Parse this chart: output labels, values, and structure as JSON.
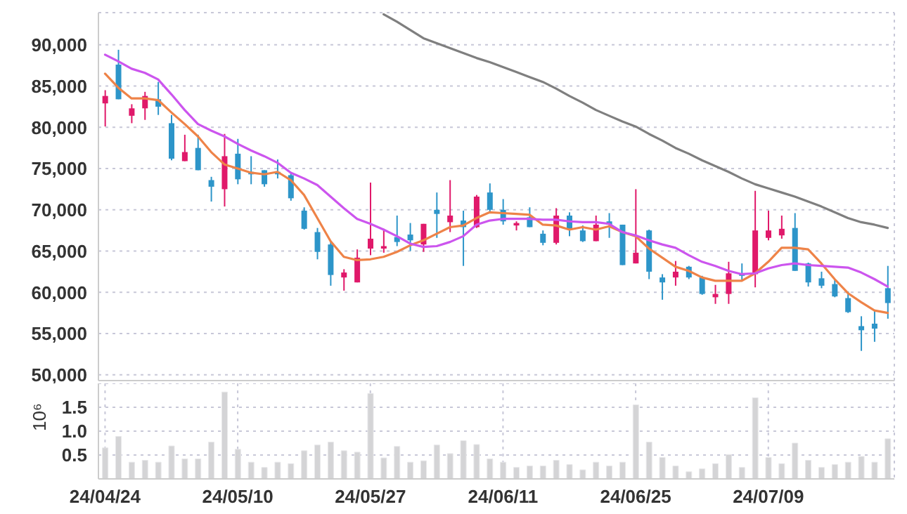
{
  "chart_data": [
    {
      "type": "candlestick",
      "ohlc": [
        [
          82900,
          84500,
          80100,
          83800
        ],
        [
          87600,
          89400,
          83400,
          83400
        ],
        [
          81400,
          82800,
          80500,
          82300
        ],
        [
          82300,
          84300,
          80900,
          83800
        ],
        [
          83400,
          85500,
          81500,
          82500
        ],
        [
          80500,
          81500,
          76000,
          76200
        ],
        [
          75900,
          79100,
          75900,
          77000
        ],
        [
          77500,
          79100,
          74800,
          74800
        ],
        [
          73600,
          74000,
          71000,
          72800
        ],
        [
          72500,
          79200,
          70400,
          76500
        ],
        [
          76800,
          78600,
          73100,
          73700
        ],
        [
          74600,
          76500,
          73100,
          74300
        ],
        [
          74800,
          74800,
          72800,
          73100
        ],
        [
          74600,
          76100,
          73800,
          74300
        ],
        [
          74200,
          74500,
          71100,
          71400
        ],
        [
          69900,
          70300,
          67600,
          67700
        ],
        [
          67300,
          67800,
          64000,
          64900
        ],
        [
          65800,
          66200,
          60800,
          62100
        ],
        [
          61800,
          62800,
          60200,
          62400
        ],
        [
          61200,
          65200,
          61200,
          64200
        ],
        [
          65300,
          73300,
          64500,
          66500
        ],
        [
          65300,
          67700,
          64800,
          65600
        ],
        [
          66700,
          69300,
          65600,
          66100
        ],
        [
          67000,
          68400,
          65000,
          66300
        ],
        [
          65800,
          68300,
          64900,
          68300
        ],
        [
          70000,
          72100,
          66600,
          69500
        ],
        [
          68500,
          73600,
          67300,
          69300
        ],
        [
          68700,
          69900,
          63200,
          67900
        ],
        [
          67900,
          71800,
          67800,
          71600
        ],
        [
          72100,
          73200,
          69800,
          70000
        ],
        [
          70000,
          71300,
          68200,
          68600
        ],
        [
          68100,
          68600,
          67500,
          68400
        ],
        [
          69100,
          70300,
          67900,
          67900
        ],
        [
          67100,
          67500,
          65700,
          66000
        ],
        [
          66000,
          70200,
          65800,
          69300
        ],
        [
          69300,
          69700,
          66800,
          67600
        ],
        [
          67500,
          68100,
          66100,
          66200
        ],
        [
          66200,
          69300,
          66200,
          68200
        ],
        [
          68600,
          69600,
          66600,
          68200
        ],
        [
          68200,
          68200,
          63300,
          63300
        ],
        [
          63500,
          72500,
          63500,
          64800
        ],
        [
          67500,
          67600,
          61600,
          62500
        ],
        [
          61800,
          62200,
          59100,
          61200
        ],
        [
          61800,
          63800,
          60800,
          62500
        ],
        [
          63100,
          63200,
          61600,
          61800
        ],
        [
          61800,
          62000,
          59700,
          59800
        ],
        [
          59400,
          60900,
          58600,
          59800
        ],
        [
          59800,
          63700,
          58600,
          62300
        ],
        [
          62300,
          63500,
          61500,
          62000
        ],
        [
          62200,
          72300,
          60600,
          67500
        ],
        [
          66600,
          69900,
          66300,
          67500
        ],
        [
          66900,
          69300,
          66500,
          67700
        ],
        [
          67800,
          69600,
          62600,
          62600
        ],
        [
          63500,
          63600,
          60700,
          61200
        ],
        [
          61700,
          62500,
          60500,
          60800
        ],
        [
          61000,
          61600,
          59400,
          59500
        ],
        [
          59300,
          60100,
          57500,
          57600
        ],
        [
          55900,
          57100,
          52900,
          55400
        ],
        [
          56200,
          57800,
          54000,
          55600
        ],
        [
          60500,
          63200,
          56800,
          58700
        ]
      ],
      "colors": [
        "#e0196a",
        "#2d95c9",
        "#e0196a",
        "#e0196a",
        "#2d95c9",
        "#2d95c9",
        "#e0196a",
        "#2d95c9",
        "#2d95c9",
        "#e0196a",
        "#2d95c9",
        "#2d95c9",
        "#2d95c9",
        "#2d95c9",
        "#2d95c9",
        "#2d95c9",
        "#2d95c9",
        "#2d95c9",
        "#e0196a",
        "#e0196a",
        "#e0196a",
        "#e0196a",
        "#2d95c9",
        "#2d95c9",
        "#e0196a",
        "#2d95c9",
        "#e0196a",
        "#2d95c9",
        "#e0196a",
        "#2d95c9",
        "#2d95c9",
        "#e0196a",
        "#2d95c9",
        "#2d95c9",
        "#e0196a",
        "#2d95c9",
        "#2d95c9",
        "#e0196a",
        "#2d95c9",
        "#2d95c9",
        "#e0196a",
        "#2d95c9",
        "#2d95c9",
        "#e0196a",
        "#2d95c9",
        "#2d95c9",
        "#e0196a",
        "#e0196a",
        "#2d95c9",
        "#e0196a",
        "#e0196a",
        "#e0196a",
        "#2d95c9",
        "#2d95c9",
        "#2d95c9",
        "#2d95c9",
        "#2d95c9",
        "#2d95c9",
        "#2d95c9",
        "#2d95c9"
      ],
      "series": [
        {
          "type": "line",
          "color": "#ee8348",
          "values": [
            86500,
            84800,
            83500,
            83500,
            83300,
            81800,
            80400,
            78900,
            77000,
            75500,
            75000,
            74500,
            74300,
            74600,
            73600,
            71800,
            69000,
            66200,
            64300,
            63900,
            64000,
            64300,
            64900,
            65700,
            66300,
            67100,
            67900,
            68100,
            69000,
            69700,
            69600,
            69500,
            69400,
            68200,
            68100,
            67600,
            67900,
            67600,
            68000,
            67300,
            66800,
            65300,
            64200,
            63100,
            62600,
            61800,
            61400,
            61400,
            61400,
            62300,
            63700,
            65400,
            65400,
            65200,
            63500,
            61600,
            59900,
            58800,
            57800,
            57500
          ]
        },
        {
          "type": "line",
          "color": "#cc55ee",
          "values": [
            88800,
            88000,
            87100,
            86600,
            85800,
            84000,
            82100,
            80400,
            79600,
            78900,
            78000,
            77200,
            76500,
            75700,
            74500,
            73800,
            73000,
            71600,
            70200,
            68900,
            68300,
            67600,
            66800,
            65900,
            65500,
            65600,
            66100,
            66800,
            68200,
            68700,
            68900,
            68900,
            68900,
            68800,
            68800,
            68600,
            68500,
            68500,
            68300,
            67300,
            66900,
            66300,
            65800,
            65400,
            64500,
            63700,
            63200,
            62600,
            62200,
            62300,
            62900,
            63300,
            63500,
            63300,
            63200,
            63100,
            63000,
            62400,
            61600,
            60700
          ]
        },
        {
          "type": "line",
          "color": "#7f7f7f",
          "values": [
            null,
            null,
            null,
            null,
            null,
            null,
            null,
            null,
            null,
            null,
            null,
            null,
            null,
            null,
            null,
            null,
            null,
            null,
            null,
            null,
            null,
            93700,
            92800,
            91800,
            90800,
            90200,
            89600,
            89000,
            88400,
            87900,
            87300,
            86700,
            86100,
            85500,
            84700,
            83800,
            83000,
            82100,
            81400,
            80700,
            80100,
            79200,
            78400,
            77500,
            76800,
            76000,
            75300,
            74600,
            73800,
            73100,
            72600,
            72100,
            71600,
            71000,
            70400,
            69700,
            69000,
            68500,
            68200,
            67800
          ]
        }
      ],
      "ylim": [
        49300,
        93900
      ],
      "yticks": [
        {
          "value": 50000,
          "label": "50,000"
        },
        {
          "value": 55000,
          "label": "55,000"
        },
        {
          "value": 60000,
          "label": "60,000"
        },
        {
          "value": 65000,
          "label": "65,000"
        },
        {
          "value": 70000,
          "label": "70,000"
        },
        {
          "value": 75000,
          "label": "75,000"
        },
        {
          "value": 80000,
          "label": "80,000"
        },
        {
          "value": 85000,
          "label": "85,000"
        },
        {
          "value": 90000,
          "label": "90,000"
        }
      ],
      "grid": true,
      "tick_labels": "y"
    },
    {
      "type": "bar",
      "categories": [
        "24/04/24",
        null,
        null,
        null,
        null,
        null,
        null,
        null,
        null,
        null,
        "24/05/10",
        null,
        null,
        null,
        null,
        null,
        null,
        null,
        null,
        null,
        "24/05/27",
        null,
        null,
        null,
        null,
        null,
        null,
        null,
        null,
        null,
        "24/06/11",
        null,
        null,
        null,
        null,
        null,
        null,
        null,
        null,
        null,
        "24/06/25",
        null,
        null,
        null,
        null,
        null,
        null,
        null,
        null,
        null,
        "24/07/09",
        null,
        null,
        null,
        null,
        null,
        null,
        null,
        null,
        null
      ],
      "values": [
        0.65,
        0.89,
        0.35,
        0.39,
        0.35,
        0.69,
        0.42,
        0.42,
        0.77,
        1.82,
        0.62,
        0.35,
        0.24,
        0.35,
        0.32,
        0.59,
        0.71,
        0.77,
        0.59,
        0.56,
        1.79,
        0.44,
        0.68,
        0.35,
        0.38,
        0.71,
        0.53,
        0.8,
        0.72,
        0.42,
        0.35,
        0.24,
        0.27,
        0.27,
        0.39,
        0.3,
        0.19,
        0.35,
        0.27,
        0.35,
        1.55,
        0.77,
        0.45,
        0.27,
        0.15,
        0.21,
        0.32,
        0.51,
        0.24,
        1.7,
        0.45,
        0.32,
        0.75,
        0.39,
        0.24,
        0.3,
        0.35,
        0.47,
        0.35,
        0.84
      ],
      "color": "#d4d4d6",
      "ylabel": "10⁶",
      "ylim": [
        0,
        2
      ],
      "yticks": [
        0.5,
        {
          "value": 1,
          "label": "1.0"
        },
        1.5
      ],
      "grid": true
    }
  ]
}
